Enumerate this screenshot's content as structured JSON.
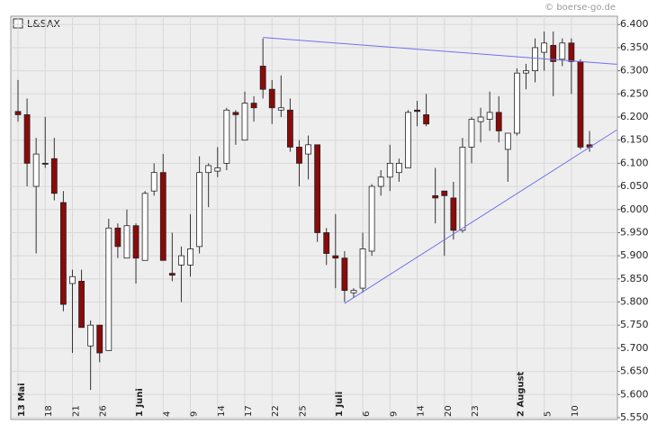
{
  "chart_data": {
    "type": "candlestick",
    "title": "L&SAX",
    "source": "© boerse-go.de",
    "categories": [
      "13 Mai",
      null,
      null,
      "18",
      null,
      null,
      "21",
      null,
      null,
      "26",
      null,
      null,
      null,
      "1 Juni",
      null,
      null,
      "4",
      null,
      null,
      "9",
      null,
      null,
      "14",
      null,
      null,
      "17",
      null,
      null,
      "22",
      null,
      null,
      "25",
      null,
      null,
      null,
      "1 Juli",
      null,
      null,
      "6",
      null,
      null,
      "9",
      null,
      null,
      "14",
      null,
      null,
      "20",
      null,
      null,
      "23",
      null,
      null,
      null,
      null,
      "2 August",
      null,
      null,
      "5",
      null,
      null,
      "10",
      null,
      null
    ],
    "open": [
      6.212,
      6.205,
      6.05,
      6.1,
      6.11,
      6.015,
      5.84,
      5.845,
      5.705,
      5.75,
      5.695,
      5.96,
      5.895,
      5.965,
      5.89,
      6.04,
      6.08,
      5.862,
      5.88,
      5.88,
      5.92,
      6.08,
      6.083,
      6.1,
      6.21,
      6.15,
      6.23,
      6.31,
      6.26,
      6.215,
      6.215,
      6.135,
      6.12,
      6.14,
      5.95,
      5.9,
      5.895,
      5.82,
      5.83,
      5.91,
      6.05,
      6.07,
      6.08,
      6.09,
      6.215,
      6.205,
      6.03,
      6.04,
      6.025,
      5.955,
      6.135,
      6.19,
      6.195,
      6.21,
      6.13,
      6.165,
      6.295,
      6.3,
      6.34,
      6.355,
      6.325,
      6.36,
      6.32,
      6.14
    ],
    "high": [
      6.28,
      6.24,
      6.155,
      6.2,
      6.155,
      6.04,
      5.87,
      5.87,
      5.76,
      5.75,
      5.98,
      5.97,
      6.0,
      5.97,
      6.04,
      6.1,
      6.12,
      5.95,
      5.92,
      5.99,
      6.115,
      6.1,
      6.135,
      6.22,
      6.215,
      6.255,
      6.245,
      6.37,
      6.28,
      6.29,
      6.24,
      6.15,
      6.16,
      6.14,
      5.96,
      5.99,
      5.91,
      5.83,
      5.95,
      6.055,
      6.085,
      6.14,
      6.11,
      6.215,
      6.235,
      6.25,
      6.09,
      6.04,
      6.06,
      6.155,
      6.2,
      6.22,
      6.255,
      6.245,
      6.165,
      6.305,
      6.315,
      6.37,
      6.385,
      6.385,
      6.37,
      6.37,
      6.325,
      6.17
    ],
    "low": [
      6.19,
      6.05,
      5.905,
      6.09,
      6.02,
      5.78,
      5.69,
      5.745,
      5.61,
      5.67,
      5.695,
      5.895,
      5.895,
      5.84,
      5.89,
      6.03,
      5.89,
      5.845,
      5.8,
      5.855,
      5.905,
      6.005,
      6.07,
      6.085,
      6.14,
      6.15,
      6.19,
      6.24,
      6.185,
      6.2,
      6.125,
      6.05,
      6.065,
      5.93,
      5.88,
      5.83,
      5.8,
      5.81,
      5.82,
      5.9,
      6.03,
      6.04,
      6.06,
      6.09,
      6.18,
      6.18,
      5.97,
      5.9,
      5.935,
      5.95,
      6.1,
      6.145,
      6.17,
      6.145,
      6.06,
      6.16,
      6.26,
      6.275,
      6.3,
      6.245,
      6.31,
      6.25,
      6.13,
      6.125
    ],
    "close": [
      6.205,
      6.1,
      6.12,
      6.098,
      6.035,
      5.795,
      5.855,
      5.745,
      5.75,
      5.69,
      5.96,
      5.92,
      5.965,
      5.895,
      6.035,
      6.08,
      5.89,
      5.858,
      5.9,
      5.915,
      6.08,
      6.095,
      6.09,
      6.215,
      6.205,
      6.23,
      6.22,
      6.26,
      6.22,
      6.22,
      6.135,
      6.1,
      6.14,
      5.95,
      5.905,
      5.895,
      5.825,
      5.825,
      5.915,
      6.05,
      6.07,
      6.1,
      6.1,
      6.21,
      6.212,
      6.185,
      6.025,
      6.03,
      5.955,
      6.135,
      6.195,
      6.2,
      6.21,
      6.17,
      6.165,
      6.295,
      6.3,
      6.35,
      6.36,
      6.32,
      6.36,
      6.32,
      6.135,
      6.135
    ],
    "up_color": "#ffffff",
    "down_color": "#8b0a0a",
    "trendline_color": "#7070ee",
    "trendlines": [
      {
        "x": [
          27,
          66
        ],
        "y": [
          6.372,
          6.314
        ]
      },
      {
        "x": [
          36,
          66
        ],
        "y": [
          5.797,
          6.172
        ]
      }
    ],
    "ylim": [
      5.546,
      6.418
    ],
    "yticks": [
      {
        "value": 5.55,
        "label": "5.550"
      },
      {
        "value": 5.6,
        "label": "5.600"
      },
      {
        "value": 5.65,
        "label": "5.650"
      },
      {
        "value": 5.7,
        "label": "5.700"
      },
      {
        "value": 5.75,
        "label": "5.750"
      },
      {
        "value": 5.8,
        "label": "5.800"
      },
      {
        "value": 5.85,
        "label": "5.850"
      },
      {
        "value": 5.9,
        "label": "5.900"
      },
      {
        "value": 5.95,
        "label": "5.950"
      },
      {
        "value": 6.0,
        "label": "6.000"
      },
      {
        "value": 6.05,
        "label": "6.050"
      },
      {
        "value": 6.1,
        "label": "6.100"
      },
      {
        "value": 6.15,
        "label": "6.150"
      },
      {
        "value": 6.2,
        "label": "6.200"
      },
      {
        "value": 6.25,
        "label": "6.250"
      },
      {
        "value": 6.3,
        "label": "6.300"
      },
      {
        "value": 6.35,
        "label": "6.350"
      },
      {
        "value": 6.4,
        "label": "6.400"
      }
    ],
    "grid": true
  }
}
